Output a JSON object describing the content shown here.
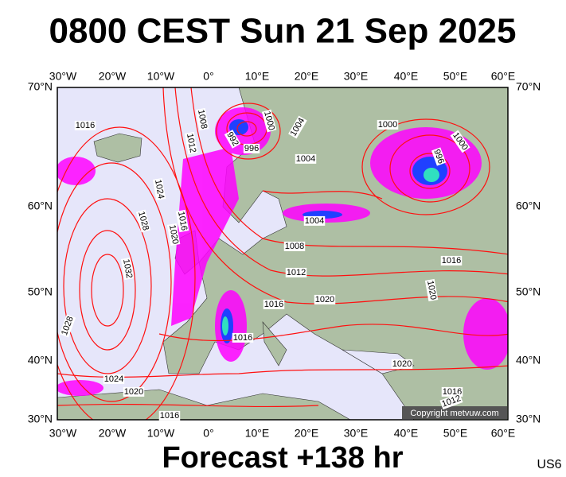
{
  "header": {
    "title": "0800 CEST Sun 21 Sep 2025"
  },
  "axes": {
    "lon_labels": [
      "30°W",
      "20°W",
      "10°W",
      "0°",
      "10°E",
      "20°E",
      "30°E",
      "40°E",
      "50°E",
      "60°E"
    ],
    "lat_labels": [
      "70°N",
      "60°N",
      "50°N",
      "40°N",
      "30°N"
    ]
  },
  "isobar_labels": [
    "1016",
    "1008",
    "1012",
    "992",
    "996",
    "1000",
    "1004",
    "1004",
    "1000",
    "1000",
    "996",
    "1024",
    "1028",
    "1016",
    "1020",
    "1004",
    "1008",
    "1012",
    "1032",
    "1016",
    "1020",
    "1020",
    "1016",
    "1016",
    "1028",
    "1020",
    "1024",
    "1020",
    "1016",
    "1012",
    "1016"
  ],
  "copyright": "Copyright metvuw.com",
  "footer": {
    "forecast": "Forecast +138 hr",
    "model": "US6"
  }
}
